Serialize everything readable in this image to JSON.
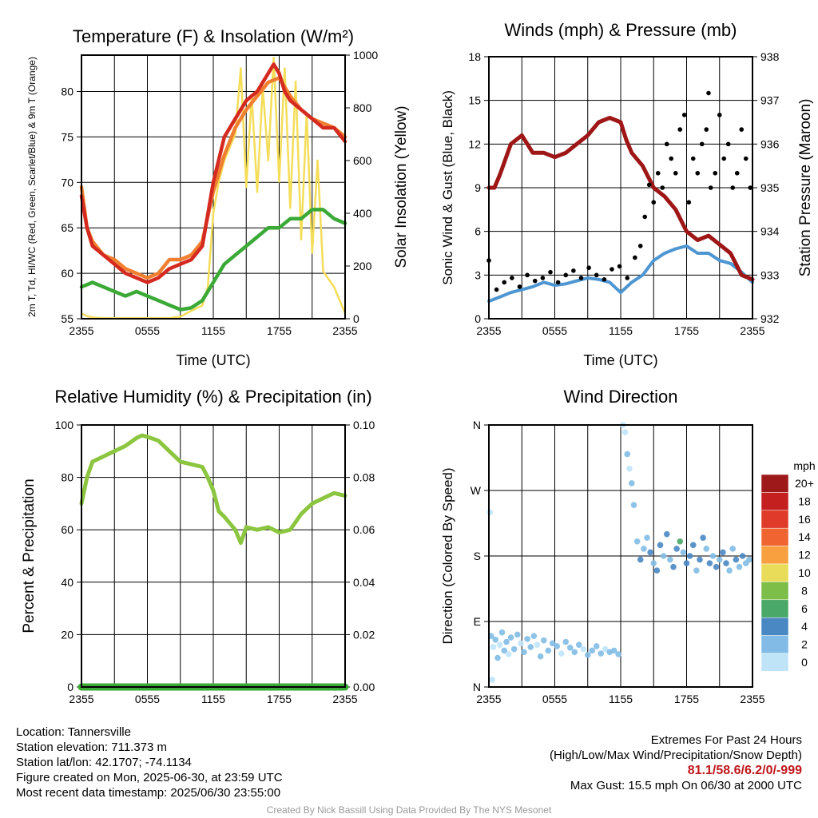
{
  "colors": {
    "temp": "#d42a20",
    "dewpoint": "#3aa935",
    "heat_index": "#f08030",
    "temp9m": "#f08030",
    "insolation": "#f4dd58",
    "wind": "#4d96d2",
    "gust": "#000000",
    "pressure": "#9e1616",
    "rh": "#8cc640",
    "precip": "#3aa935",
    "grid": "#000000"
  },
  "speed_scale": {
    "unit": "mph",
    "labels": [
      "20+",
      "18",
      "16",
      "14",
      "12",
      "10",
      "8",
      "6",
      "4",
      "2",
      "0"
    ],
    "colors": [
      "#9e1a1a",
      "#c42020",
      "#e03a2a",
      "#f06432",
      "#f8a040",
      "#e8dc58",
      "#7cbe48",
      "#4aa868",
      "#4a88c4",
      "#82bce6",
      "#bfe4f8"
    ]
  },
  "chart_data": [
    {
      "id": "temperature",
      "type": "line",
      "title": "Temperature (F) & Insolation (W/m²)",
      "xlabel": "Time (UTC)",
      "ylabel": "2m T, Td, HI/WC (Red, Green, Scarlet/Blue) & 9m T (Orange)",
      "y2label": "Solar Insolation (Yellow)",
      "xticks": [
        "2355",
        "0555",
        "1155",
        "1755",
        "2355"
      ],
      "xlim": [
        0,
        24
      ],
      "ylim": [
        55,
        84
      ],
      "yticks": [
        55,
        60,
        65,
        70,
        75,
        80
      ],
      "y2lim": [
        0,
        1000
      ],
      "y2ticks": [
        0,
        200,
        400,
        600,
        800,
        1000
      ],
      "grid": true,
      "series": [
        {
          "key": "temp",
          "axis": "left",
          "x": [
            0,
            0.5,
            1,
            2,
            3,
            4,
            5,
            6,
            7,
            8,
            9,
            10,
            11,
            12,
            13,
            14,
            15,
            16,
            17,
            17.5,
            18,
            18.5,
            19,
            20,
            21,
            22,
            23,
            24
          ],
          "values": [
            68.5,
            65,
            63,
            62,
            61,
            60,
            59.5,
            59,
            59.5,
            60.5,
            61,
            61.5,
            63,
            70,
            75,
            77,
            79,
            80,
            82,
            83,
            82,
            80,
            79,
            78,
            77,
            76,
            76,
            74.5
          ]
        },
        {
          "key": "temp9m",
          "axis": "left",
          "x": [
            0,
            0.5,
            1,
            2,
            3,
            4,
            5,
            6,
            7,
            8,
            9,
            10,
            11,
            12,
            13,
            14,
            15,
            16,
            17,
            18,
            19,
            20,
            21,
            22,
            23,
            24
          ],
          "values": [
            69.5,
            65,
            63.5,
            62,
            61.5,
            60.5,
            60,
            59.5,
            60,
            61.5,
            61.5,
            62,
            63.5,
            69,
            73,
            76,
            78,
            79.5,
            81,
            81.5,
            79.5,
            78,
            77,
            76.5,
            76,
            75
          ]
        },
        {
          "key": "dewpoint",
          "axis": "left",
          "x": [
            0,
            1,
            2,
            3,
            4,
            5,
            6,
            7,
            8,
            9,
            10,
            11,
            12,
            13,
            14,
            15,
            16,
            17,
            18,
            19,
            20,
            21,
            22,
            23,
            24
          ],
          "values": [
            58.5,
            59,
            58.5,
            58,
            57.5,
            58,
            57.5,
            57,
            56.5,
            56,
            56.2,
            57,
            59,
            61,
            62,
            63,
            64,
            65,
            65,
            66,
            66,
            67,
            67,
            66,
            65.5
          ]
        },
        {
          "key": "insolation",
          "axis": "right",
          "x": [
            0,
            0.5,
            1,
            2,
            4,
            6,
            8,
            9,
            10,
            11,
            11.5,
            12,
            12.5,
            13,
            14,
            14.5,
            15,
            15.5,
            16,
            16.5,
            17,
            17.5,
            18,
            18.5,
            19,
            19.5,
            20,
            20.5,
            21,
            21.5,
            22,
            22.5,
            23,
            24
          ],
          "values": [
            20,
            10,
            5,
            2,
            2,
            2,
            2,
            8,
            30,
            50,
            120,
            400,
            520,
            600,
            700,
            950,
            500,
            850,
            480,
            880,
            600,
            990,
            520,
            950,
            420,
            900,
            300,
            780,
            250,
            600,
            180,
            150,
            120,
            20
          ]
        }
      ]
    },
    {
      "id": "winds",
      "type": "line",
      "title": "Winds (mph) & Pressure (mb)",
      "xlabel": "Time (UTC)",
      "ylabel": "Sonic Wind & Gust (Blue, Black)",
      "y2label": "Station Pressure (Maroon)",
      "xticks": [
        "2355",
        "0555",
        "1155",
        "1755",
        "2355"
      ],
      "xlim": [
        0,
        24
      ],
      "ylim": [
        0,
        18
      ],
      "yticks": [
        0,
        3,
        6,
        9,
        12,
        15,
        18
      ],
      "y2lim": [
        932,
        938
      ],
      "y2ticks": [
        932,
        933,
        934,
        935,
        936,
        937,
        938
      ],
      "grid": true,
      "series": [
        {
          "key": "wind",
          "axis": "left",
          "x": [
            0,
            1,
            2,
            3,
            4,
            5,
            6,
            7,
            8,
            9,
            10,
            11,
            12,
            13,
            14,
            15,
            16,
            17,
            18,
            19,
            20,
            21,
            22,
            23,
            24
          ],
          "values": [
            1.2,
            1.5,
            1.8,
            2,
            2.2,
            2.5,
            2.3,
            2.4,
            2.6,
            2.8,
            2.7,
            2.5,
            1.8,
            2.5,
            3,
            4,
            4.5,
            4.8,
            5,
            4.5,
            4.5,
            4,
            3.8,
            3.2,
            2.5
          ]
        },
        {
          "key": "pressure",
          "axis": "right",
          "x": [
            0,
            0.5,
            1,
            2,
            3,
            4,
            5,
            6,
            7,
            8,
            9,
            10,
            11,
            12,
            12.5,
            13,
            14,
            15,
            16,
            17,
            18,
            19,
            20,
            21,
            22,
            23,
            24
          ],
          "values": [
            935.0,
            935.0,
            935.3,
            936.0,
            936.2,
            935.8,
            935.8,
            935.7,
            935.8,
            936.0,
            936.2,
            936.5,
            936.6,
            936.5,
            936.1,
            935.8,
            935.5,
            935.0,
            934.8,
            934.5,
            934.0,
            933.8,
            933.9,
            933.7,
            933.5,
            933.0,
            932.9
          ]
        },
        {
          "key": "gust",
          "axis": "left",
          "mode": "points",
          "x": [
            0,
            0.7,
            1.4,
            2.1,
            2.8,
            3.5,
            4.2,
            4.9,
            5.6,
            6.3,
            7,
            7.7,
            8.4,
            9.1,
            9.8,
            10.5,
            11.2,
            11.9,
            12.6,
            13.3,
            13.8,
            14.2,
            14.6,
            15,
            15.4,
            15.8,
            16.2,
            16.6,
            17,
            17.4,
            17.8,
            18.2,
            18.6,
            19,
            19.4,
            19.8,
            20,
            20.2,
            20.6,
            21,
            21.4,
            21.8,
            22.2,
            22.6,
            23,
            23.4,
            23.8
          ],
          "values": [
            4,
            2,
            2.5,
            2.8,
            2.2,
            3,
            2.6,
            2.8,
            3.2,
            2.5,
            3,
            3.3,
            2.8,
            3.5,
            3,
            2.7,
            3.4,
            3.6,
            2.8,
            4.2,
            5,
            7,
            9.2,
            8,
            10,
            9,
            12,
            11,
            10,
            13,
            14,
            8,
            11,
            10,
            12,
            13,
            15.5,
            9,
            10,
            14,
            11,
            12,
            9,
            10,
            13,
            11,
            9
          ]
        }
      ]
    },
    {
      "id": "humidity",
      "type": "line",
      "title": "Relative Humidity (%) & Precipitation (in)",
      "xlabel": "",
      "ylabel": "Percent & Precipitation",
      "xticks": [
        "2355",
        "0555",
        "1155",
        "1755",
        "2355"
      ],
      "xlim": [
        0,
        24
      ],
      "ylim": [
        0,
        100
      ],
      "yticks": [
        0,
        20,
        40,
        60,
        80,
        100
      ],
      "y2lim": [
        0,
        0.1
      ],
      "y2ticks": [
        "0.00",
        "0.02",
        "0.04",
        "0.06",
        "0.08",
        "0.10"
      ],
      "grid": true,
      "series": [
        {
          "key": "rh",
          "axis": "left",
          "x": [
            0,
            0.5,
            1,
            2,
            3,
            4,
            5,
            5.5,
            6,
            7,
            8,
            9,
            10,
            11,
            11.5,
            12,
            12.5,
            13,
            14,
            14.5,
            15,
            16,
            17,
            18,
            19,
            20,
            21,
            22,
            23,
            24
          ],
          "values": [
            70,
            80,
            86,
            88,
            90,
            92,
            95,
            96,
            95.5,
            94,
            90,
            86,
            85,
            84,
            80,
            75,
            67,
            65,
            60,
            55,
            61,
            60,
            61,
            59,
            60,
            66,
            70,
            72,
            74,
            73
          ]
        },
        {
          "key": "precip",
          "axis": "right",
          "x": [
            0,
            24
          ],
          "values": [
            0,
            0
          ]
        }
      ]
    },
    {
      "id": "direction",
      "type": "scatter",
      "title": "Wind Direction",
      "xlabel": "",
      "ylabel": "Direction (Colored By Speed)",
      "xticks": [
        "2355",
        "0555",
        "1155",
        "1755",
        "2355"
      ],
      "xlim": [
        0,
        24
      ],
      "ylim": [
        0,
        360
      ],
      "yticks": [
        "N",
        "E",
        "S",
        "W",
        "N"
      ],
      "grid": true,
      "points": {
        "x": [
          0.2,
          0.4,
          0.6,
          0.8,
          1,
          1.2,
          1.4,
          1.6,
          1.8,
          2,
          2.3,
          2.6,
          2.9,
          3.2,
          3.5,
          3.8,
          4.1,
          4.4,
          4.7,
          5,
          5.4,
          5.8,
          6.2,
          6.6,
          7,
          7.4,
          7.8,
          8.2,
          8.6,
          9,
          9.4,
          9.8,
          10.2,
          10.6,
          11,
          11.4,
          11.8,
          12.2,
          12.4,
          12.6,
          12.8,
          13,
          13.2,
          13.5,
          13.8,
          14.1,
          14.4,
          14.7,
          15,
          15.3,
          15.6,
          15.9,
          16.2,
          16.5,
          16.8,
          17.1,
          17.4,
          17.7,
          18,
          18.3,
          18.6,
          18.9,
          19.2,
          19.5,
          19.8,
          20.1,
          20.4,
          20.7,
          21,
          21.3,
          21.6,
          21.9,
          22.2,
          22.5,
          22.8,
          23.1,
          23.4,
          23.7,
          0.1,
          0.3
        ],
        "values": [
          70,
          55,
          65,
          40,
          58,
          75,
          50,
          62,
          45,
          68,
          52,
          72,
          60,
          48,
          66,
          55,
          70,
          58,
          42,
          64,
          50,
          60,
          56,
          46,
          62,
          54,
          48,
          58,
          52,
          44,
          50,
          56,
          46,
          52,
          48,
          50,
          45,
          360,
          350,
          320,
          300,
          280,
          250,
          200,
          175,
          190,
          205,
          185,
          170,
          160,
          195,
          180,
          210,
          175,
          165,
          190,
          200,
          185,
          170,
          180,
          195,
          160,
          175,
          205,
          190,
          170,
          180,
          165,
          175,
          185,
          170,
          160,
          190,
          175,
          165,
          180,
          170,
          175,
          240,
          10
        ],
        "speeds": [
          2,
          1,
          2,
          3,
          1,
          2,
          3,
          2,
          1,
          2,
          3,
          2,
          1,
          3,
          2,
          2,
          3,
          1,
          2,
          3,
          2,
          2,
          3,
          1,
          2,
          3,
          2,
          2,
          1,
          2,
          3,
          2,
          2,
          1,
          2,
          3,
          2,
          1,
          0,
          2,
          1,
          2,
          3,
          3,
          4,
          3,
          2,
          4,
          3,
          4,
          4,
          3,
          4,
          2,
          4,
          4,
          7,
          3,
          4,
          4,
          5,
          3,
          4,
          4,
          3,
          4,
          2,
          4,
          3,
          4,
          4,
          3,
          2,
          4,
          3,
          4,
          3,
          2,
          1,
          1
        ]
      }
    }
  ],
  "info_left": {
    "location": "Location: Tannersville",
    "elevation": "Station elevation: 711.373 m",
    "latlon": "Station lat/lon: 42.1707; -74.1134",
    "created": "Figure created on Mon, 2025-06-30, at 23:59 UTC",
    "recent": "Most recent data timestamp: 2025/06/30 23:55:00"
  },
  "info_right": {
    "title": "Extremes For Past 24 Hours",
    "subtitle": "(High/Low/Max Wind/Precipitation/Snow Depth)",
    "values": "81.1/58.6/6.2/0/-999",
    "gust": "Max Gust: 15.5 mph On 06/30 at 2000 UTC"
  },
  "credit": "Created By Nick Bassill Using Data Provided By The NYS Mesonet"
}
